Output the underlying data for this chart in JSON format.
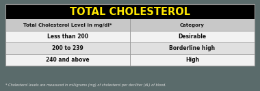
{
  "title": "TOTAL CHOLESTEROL",
  "title_color": "#FFE800",
  "title_bg": "#000000",
  "header_col1": "Total Cholesterol Level in mg/dl*",
  "header_col2": "Category",
  "header_bg": "#C8C8C8",
  "rows": [
    [
      "Less than 200",
      "Desirable"
    ],
    [
      "200 to 239",
      "Borderline high"
    ],
    [
      "240 and above",
      "High"
    ]
  ],
  "row_bg_even": "#F2F2F2",
  "row_bg_odd": "#E0E0E0",
  "footnote": "* Cholesterol levels are measured in milligrams (mg) of cholesterol per deciliter (dL) of blood.",
  "border_color": "#999999",
  "text_color": "#111111",
  "outer_bg": "#5A6B6B",
  "table_bg": "#FFFFFF",
  "col_split": 0.5
}
